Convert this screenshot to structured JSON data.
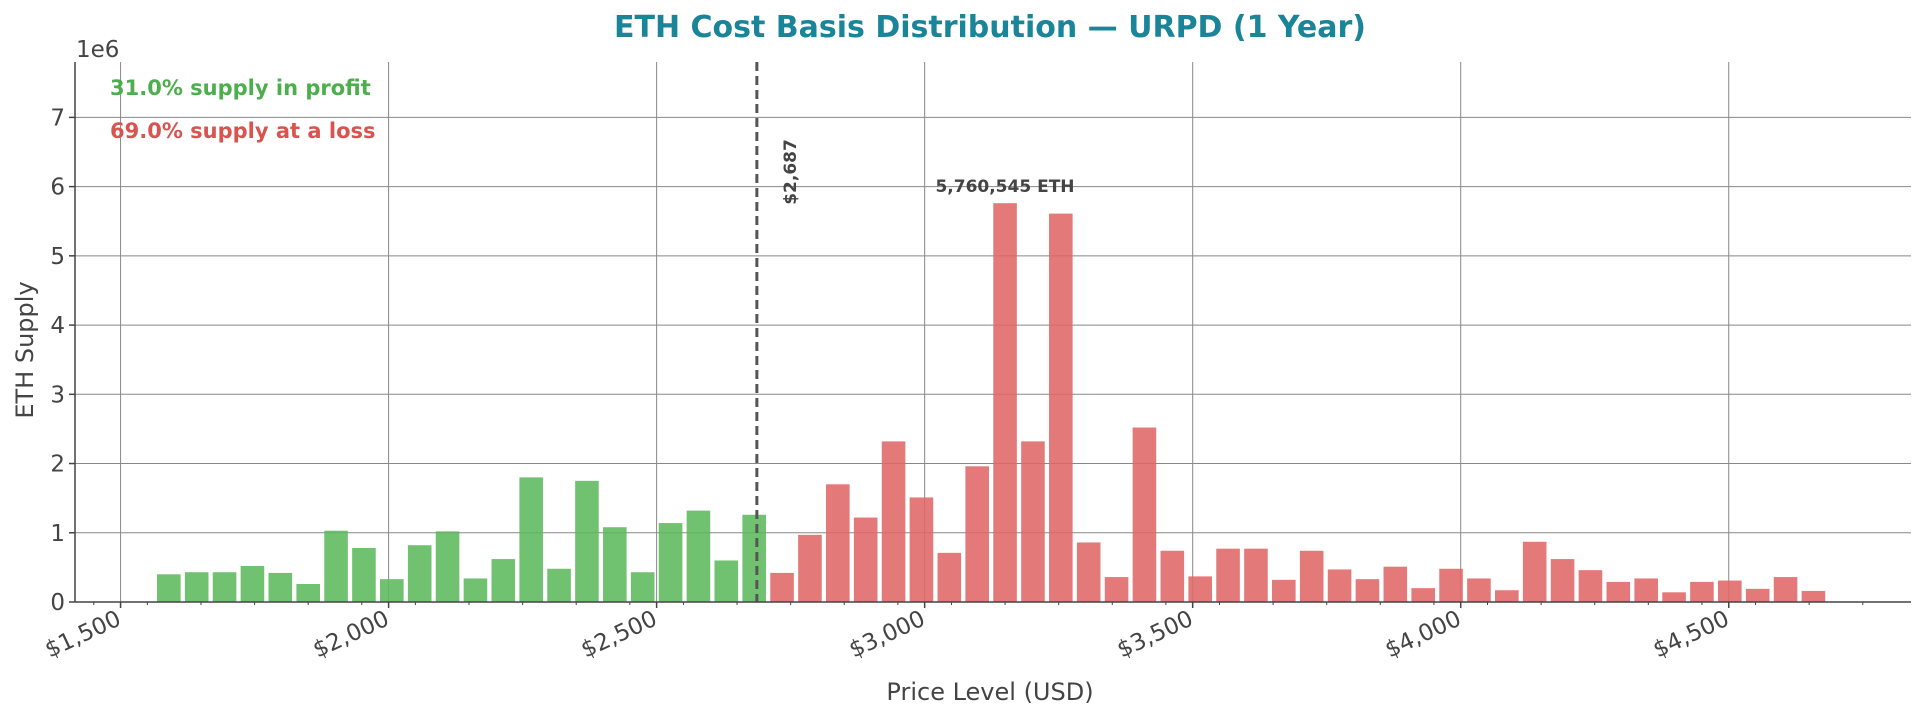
{
  "colors": {
    "title": "#1a8499",
    "profit": "#5cb85c",
    "loss": "#e06666",
    "profit_text": "#4cae4c",
    "loss_text": "#d9534f",
    "grid": "#888888",
    "axis": "#444444",
    "marker": "#555555"
  },
  "chart_data": {
    "type": "bar",
    "title": "ETH Cost Basis Distribution — URPD (1 Year)",
    "xlabel": "Price Level (USD)",
    "ylabel": "ETH Supply",
    "y_multiplier_label": "1e6",
    "xlim": [
      1415,
      4840
    ],
    "ylim": [
      0,
      7800000
    ],
    "x_ticks": [
      1500,
      2000,
      2500,
      3000,
      3500,
      4000,
      4500
    ],
    "x_tick_labels": [
      "$1,500",
      "$2,000",
      "$2,500",
      "$3,000",
      "$3,500",
      "$4,000",
      "$4,500"
    ],
    "y_ticks": [
      0,
      1000000,
      2000000,
      3000000,
      4000000,
      5000000,
      6000000,
      7000000
    ],
    "y_tick_labels": [
      "0",
      "1",
      "2",
      "3",
      "4",
      "5",
      "6",
      "7"
    ],
    "grid": true,
    "bar_width": 44,
    "current_price": 2687,
    "current_price_label": "$2,687",
    "peak_label": "5,760,545 ETH",
    "profit_label": "31.0% supply in profit",
    "loss_label": "69.0% supply at a loss",
    "x": [
      1590,
      1642,
      1694,
      1746,
      1798,
      1850,
      1902,
      1954,
      2006,
      2058,
      2110,
      2162,
      2214,
      2266,
      2318,
      2370,
      2422,
      2474,
      2526,
      2578,
      2630,
      2682,
      2734,
      2786,
      2838,
      2890,
      2942,
      2994,
      3046,
      3098,
      3150,
      3202,
      3254,
      3306,
      3358,
      3410,
      3462,
      3514,
      3566,
      3618,
      3670,
      3722,
      3774,
      3826,
      3878,
      3930,
      3982,
      4034,
      4086,
      4138,
      4190,
      4242,
      4294,
      4346,
      4398,
      4450,
      4502,
      4554,
      4606,
      4658
    ],
    "values": [
      400000,
      430000,
      430000,
      520000,
      420000,
      260000,
      1030000,
      780000,
      330000,
      820000,
      1020000,
      340000,
      620000,
      1800000,
      480000,
      1750000,
      1080000,
      430000,
      1140000,
      1320000,
      600000,
      1260000,
      420000,
      970000,
      1700000,
      1220000,
      2320000,
      1510000,
      710000,
      1960000,
      5760545,
      2320000,
      5610000,
      860000,
      360000,
      2520000,
      740000,
      370000,
      770000,
      770000,
      320000,
      740000,
      470000,
      330000,
      510000,
      200000,
      480000,
      340000,
      170000,
      870000,
      620000,
      460000,
      290000,
      340000,
      140000,
      290000,
      310000,
      190000,
      360000,
      160000
    ]
  }
}
